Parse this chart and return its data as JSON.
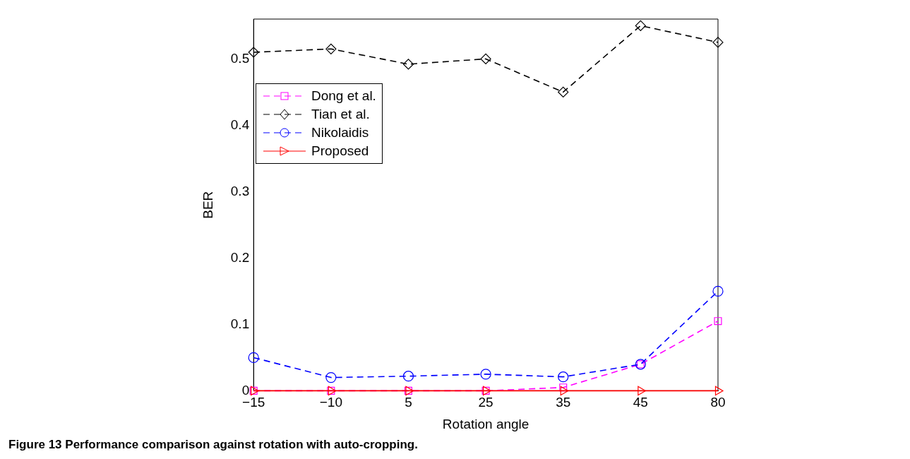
{
  "chart_data": {
    "type": "line",
    "xlabel": "Rotation angle",
    "ylabel": "BER",
    "categories": [
      "−15",
      "−10",
      "5",
      "25",
      "35",
      "45",
      "80"
    ],
    "ylim": [
      0,
      0.56
    ],
    "yticks": [
      0,
      0.1,
      0.2,
      0.3,
      0.4,
      0.5
    ],
    "grid": false,
    "legend": "top left",
    "series": [
      {
        "name": "Dong et al.",
        "color": "#ff00ff",
        "marker": "square",
        "line_style": "dashed",
        "values": [
          0,
          0,
          0,
          0,
          0.005,
          0.04,
          0.105
        ]
      },
      {
        "name": "Tian et al.",
        "color": "#000000",
        "marker": "diamond",
        "line_style": "dashed",
        "values": [
          0.51,
          0.515,
          0.492,
          0.5,
          0.45,
          0.55,
          0.525
        ]
      },
      {
        "name": "Nikolaidis",
        "color": "#0000ff",
        "marker": "circle",
        "line_style": "dashed",
        "values": [
          0.05,
          0.02,
          0.022,
          0.025,
          0.021,
          0.04,
          0.15
        ]
      },
      {
        "name": "Proposed",
        "color": "#ff0000",
        "marker": "triangle",
        "line_style": "solid",
        "values": [
          0,
          0,
          0,
          0,
          0,
          0,
          0
        ]
      }
    ],
    "annotations": [
      "Figure 13 Performance comparison against rotation with auto-cropping."
    ]
  }
}
